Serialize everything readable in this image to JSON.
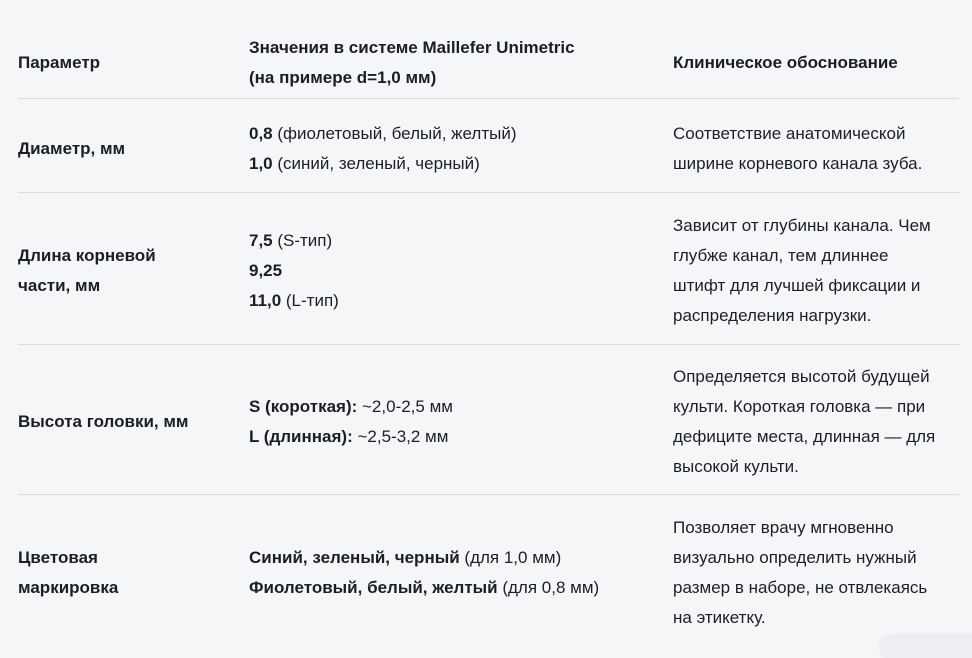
{
  "colors": {
    "background": "#f5f6f8",
    "divider": "#d9dbde",
    "text": "#1c1f23"
  },
  "table": {
    "header": {
      "param": "Параметр",
      "values": "Значения в системе Maillefer Unimetric\n(на примере d=1,0 мм)",
      "rationale": "Клиническое обоснование"
    },
    "rows": [
      {
        "param": "Диаметр, мм",
        "values": [
          {
            "bold": "0,8",
            "rest": " (фиолетовый, белый, желтый)"
          },
          {
            "bold": "1,0",
            "rest": " (синий, зеленый, черный)"
          }
        ],
        "rationale": "Соответствие анатомической\nширине корневого канала зуба."
      },
      {
        "param": "Длина корневой\nчасти, мм",
        "values": [
          {
            "bold": "7,5",
            "rest": " (S-тип)"
          },
          {
            "bold": "9,25",
            "rest": ""
          },
          {
            "bold": "11,0",
            "rest": " (L-тип)"
          }
        ],
        "rationale": "Зависит от глубины канала. Чем\nглубже канал, тем длиннее\nштифт для лучшей фиксации и\nраспределения нагрузки."
      },
      {
        "param": "Высота головки, мм",
        "values": [
          {
            "bold": "S (короткая):",
            "rest": " ~2,0-2,5 мм"
          },
          {
            "bold": "L (длинная):",
            "rest": " ~2,5-3,2 мм"
          }
        ],
        "rationale": "Определяется высотой будущей\nкульти. Короткая головка — при\nдефиците места, длинная — для\nвысокой культи."
      },
      {
        "param": "Цветовая\nмаркировка",
        "values": [
          {
            "bold": "Синий, зеленый, черный",
            "rest": " (для 1,0 мм)"
          },
          {
            "bold": "Фиолетовый, белый, желтый",
            "rest": " (для 0,8 мм)"
          }
        ],
        "rationale": "Позволяет врачу мгновенно\nвизуально определить нужный\nразмер в наборе, не отвлекаясь\nна этикетку."
      }
    ]
  }
}
